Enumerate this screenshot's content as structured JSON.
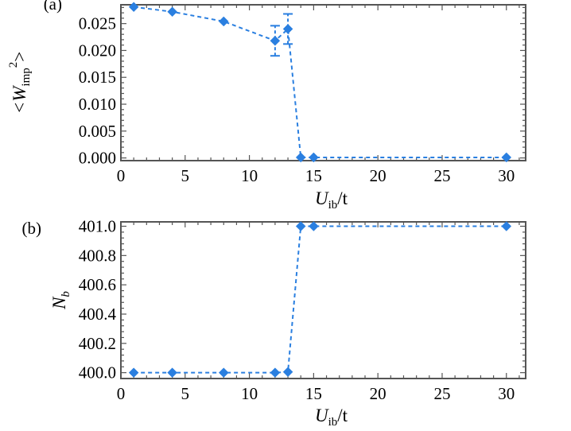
{
  "colors": {
    "series": "#2a7fe0",
    "frame": "#555555"
  },
  "chart_data": [
    {
      "type": "line",
      "panel_label": "(a)",
      "xlabel": {
        "main": "U",
        "sub": "ib",
        "suffix": "/t"
      },
      "ylabel": {
        "prefix": "<W",
        "sub": "imp",
        "sup": "2",
        "suffix": ">"
      },
      "xlim": [
        0,
        31.5
      ],
      "ylim": [
        -0.0005,
        0.0285
      ],
      "xticks": [
        0,
        5,
        10,
        15,
        20,
        25,
        30
      ],
      "xtick_labels": [
        "0",
        "5",
        "10",
        "15",
        "20",
        "25",
        "30"
      ],
      "yticks": [
        0,
        0.005,
        0.01,
        0.015,
        0.02,
        0.025
      ],
      "ytick_labels": [
        "0.000",
        "0.005",
        "0.010",
        "0.015",
        "0.020",
        "0.025"
      ],
      "grid": false,
      "series": [
        {
          "x": [
            1,
            4,
            8,
            12,
            13,
            14,
            15,
            30
          ],
          "y": [
            0.0281,
            0.0272,
            0.0254,
            0.0218,
            0.024,
            0.0001,
            0.0001,
            0.0001
          ],
          "yerr": [
            0,
            0,
            0,
            0.0028,
            0.0028,
            0,
            0,
            0
          ],
          "marker": "diamond",
          "linestyle": "dashed"
        }
      ]
    },
    {
      "type": "line",
      "panel_label": "(b)",
      "xlabel": {
        "main": "U",
        "sub": "ib",
        "suffix": "/t"
      },
      "ylabel": {
        "main": "N",
        "sub": "b"
      },
      "xlim": [
        0,
        31.5
      ],
      "ylim": [
        399.96,
        401.03
      ],
      "xticks": [
        0,
        5,
        10,
        15,
        20,
        25,
        30
      ],
      "xtick_labels": [
        "0",
        "5",
        "10",
        "15",
        "20",
        "25",
        "30"
      ],
      "yticks": [
        400.0,
        400.2,
        400.4,
        400.6,
        400.8,
        401.0
      ],
      "ytick_labels": [
        "400.0",
        "400.2",
        "400.4",
        "400.6",
        "400.8",
        "401.0"
      ],
      "grid": false,
      "series": [
        {
          "x": [
            1,
            4,
            8,
            12,
            13,
            14,
            15,
            30
          ],
          "y": [
            400.0,
            400.0,
            400.0,
            400.0,
            400.005,
            401.0,
            401.0,
            401.0
          ],
          "marker": "diamond",
          "linestyle": "dashed"
        }
      ]
    }
  ]
}
